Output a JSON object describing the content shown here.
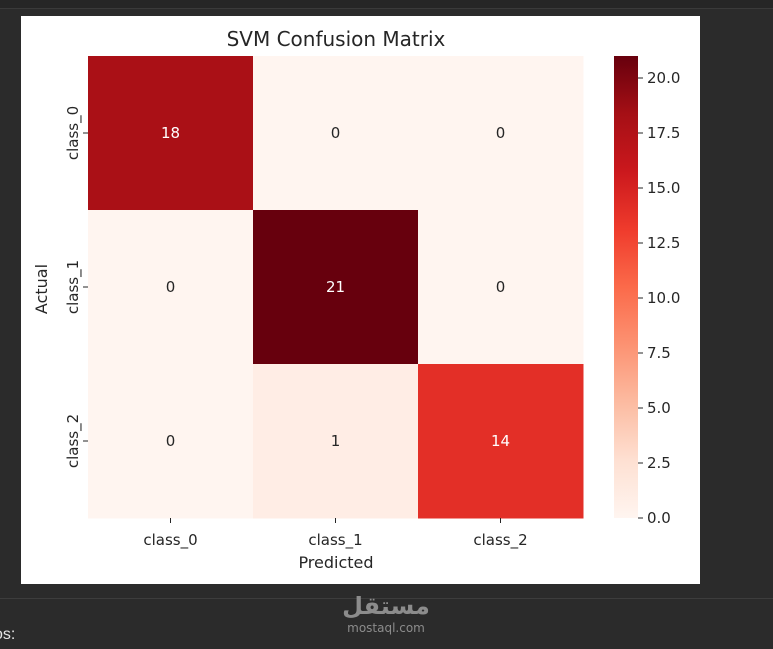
{
  "chart_data": {
    "type": "heatmap",
    "title": "SVM Confusion Matrix",
    "xlabel": "Predicted",
    "ylabel": "Actual",
    "x_categories": [
      "class_0",
      "class_1",
      "class_2"
    ],
    "y_categories": [
      "class_0",
      "class_1",
      "class_2"
    ],
    "values": [
      [
        18,
        0,
        0
      ],
      [
        0,
        21,
        0
      ],
      [
        0,
        1,
        14
      ]
    ],
    "colormap": "Reds",
    "colorbar": {
      "range": [
        0,
        21
      ],
      "ticks": [
        0.0,
        2.5,
        5.0,
        7.5,
        10.0,
        12.5,
        15.0,
        17.5,
        20.0
      ],
      "tick_labels": [
        "0.0",
        "2.5",
        "5.0",
        "7.5",
        "10.0",
        "12.5",
        "15.0",
        "17.5",
        "20.0"
      ]
    },
    "annotations": true
  },
  "watermark": {
    "logo": "مستقل",
    "site": "mostaql.com"
  },
  "footer_partial_text": "os:"
}
